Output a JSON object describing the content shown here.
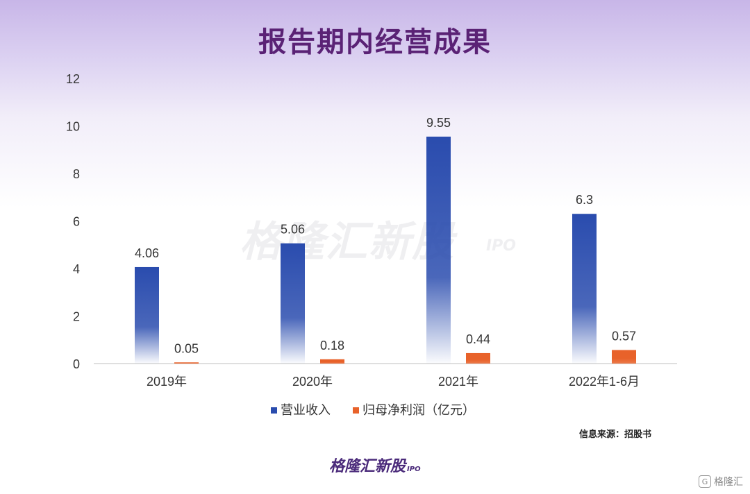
{
  "page": {
    "title": "报告期内经营成果",
    "watermark": "格隆汇新股",
    "watermark_suffix": "IPO",
    "source": "信息来源：招股书",
    "brand": "格隆汇新股",
    "brand_suffix": "IPO",
    "corner_logo_icon": "G",
    "corner_logo_text": "格隆汇"
  },
  "chart_data": {
    "type": "bar",
    "title": "报告期内经营成果",
    "categories": [
      "2019年",
      "2020年",
      "2021年",
      "2022年1-6月"
    ],
    "series": [
      {
        "name": "营业收入",
        "values": [
          4.06,
          5.06,
          9.55,
          6.3
        ],
        "labels": [
          "4.06",
          "5.06",
          "9.55",
          "6.3"
        ],
        "color": "#2a4cae"
      },
      {
        "name": "归母净利润（亿元）",
        "values": [
          0.05,
          0.18,
          0.44,
          0.57
        ],
        "labels": [
          "0.05",
          "0.18",
          "0.44",
          "0.57"
        ],
        "color": "#e8622a"
      }
    ],
    "yticks": [
      "0",
      "2",
      "4",
      "6",
      "8",
      "10",
      "12"
    ],
    "ylim": [
      0,
      12
    ],
    "grid": false,
    "legend": "bottom"
  }
}
